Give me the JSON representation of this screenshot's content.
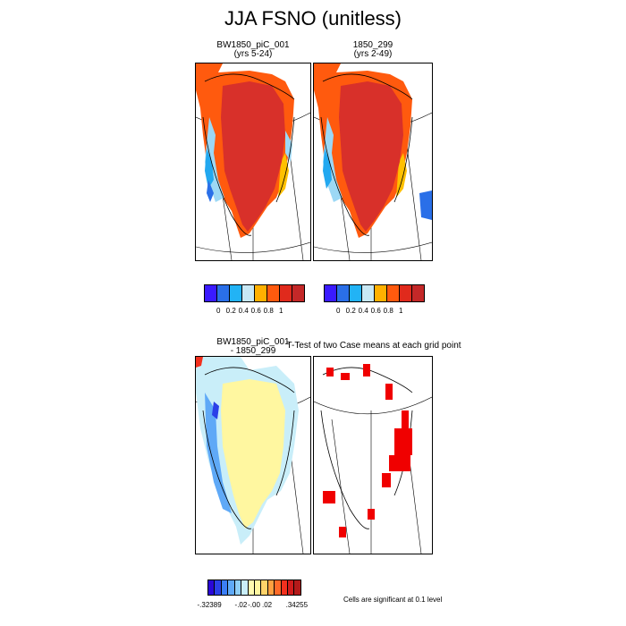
{
  "title": "JJA FSNO (unitless)",
  "panels": {
    "top_left": {
      "title_line1": "BW1850_piC_001",
      "title_line2": "(yrs 5-24)"
    },
    "top_right": {
      "title_line1": "1850_299",
      "title_line2": "(yrs 2-49)"
    },
    "bottom_left": {
      "title_line1": "BW1850_piC_001",
      "title_line2": "- 1850_299"
    },
    "bottom_right": {
      "title": "T-Test of two Case means at each grid point"
    }
  },
  "colorbars": {
    "absolute": {
      "colors": [
        "#3a1aff",
        "#2a6fe8",
        "#22b3f5",
        "#c8e8f5",
        "#ffb000",
        "#ff5a0e",
        "#e02a1c",
        "#c42828"
      ],
      "labels": [
        "0",
        "0.2",
        "0.4",
        "0.6",
        "0.8",
        "1"
      ]
    },
    "difference": {
      "colors": [
        "#2a07d8",
        "#2b40e8",
        "#3b7ef5",
        "#5fa9f7",
        "#8fcff7",
        "#c9eef9",
        "#fffbb0",
        "#fff7a0",
        "#ffd36a",
        "#ffa040",
        "#ff6a28",
        "#f2301e",
        "#d01c1c",
        "#b41a1a"
      ],
      "labels": [
        "-.32389",
        "-.02",
        "-.00",
        ".02",
        ".34255"
      ]
    }
  },
  "significance_note": "Cells are significant at 0.1 level",
  "map_colors": {
    "high": "#d8302a",
    "orange": "#ff5a0e",
    "yellow": "#ffc000",
    "ltblue": "#9cd8f5",
    "blue": "#22a8f0",
    "dkblue": "#2a6fe8",
    "diff_bg": "#fff7a0",
    "diff_pos": "#f2301e",
    "sig": "#f00000"
  }
}
